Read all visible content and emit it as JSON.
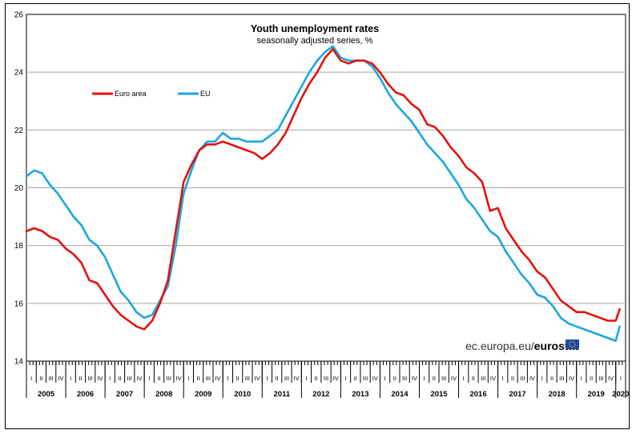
{
  "chart_data": {
    "type": "line",
    "title": "Youth unemployment rates",
    "subtitle": "seasonally adjusted series, %",
    "ylim": [
      14,
      26
    ],
    "yticks": [
      14,
      16,
      18,
      20,
      22,
      24,
      26
    ],
    "years": [
      "2005",
      "2006",
      "2007",
      "2008",
      "2009",
      "2010",
      "2011",
      "2012",
      "2013",
      "2014",
      "2015",
      "2016",
      "2017",
      "2018",
      "2019",
      "2020"
    ],
    "quarters": [
      "I",
      "II",
      "III",
      "IV"
    ],
    "legend": [
      "Euro area",
      "EU"
    ],
    "colors": {
      "Euro area": "#e3120b",
      "EU": "#1aa7e0"
    },
    "x_start": 2005.0,
    "x_end": 2020.25,
    "series": [
      {
        "name": "Euro area",
        "points": [
          [
            2005.0,
            18.5
          ],
          [
            2005.2,
            18.6
          ],
          [
            2005.4,
            18.5
          ],
          [
            2005.6,
            18.3
          ],
          [
            2005.8,
            18.2
          ],
          [
            2006.0,
            17.9
          ],
          [
            2006.2,
            17.7
          ],
          [
            2006.4,
            17.4
          ],
          [
            2006.6,
            16.8
          ],
          [
            2006.8,
            16.7
          ],
          [
            2007.0,
            16.3
          ],
          [
            2007.2,
            15.9
          ],
          [
            2007.4,
            15.6
          ],
          [
            2007.6,
            15.4
          ],
          [
            2007.8,
            15.2
          ],
          [
            2008.0,
            15.1
          ],
          [
            2008.2,
            15.4
          ],
          [
            2008.4,
            16.0
          ],
          [
            2008.6,
            16.8
          ],
          [
            2008.8,
            18.5
          ],
          [
            2009.0,
            20.2
          ],
          [
            2009.2,
            20.8
          ],
          [
            2009.4,
            21.3
          ],
          [
            2009.6,
            21.5
          ],
          [
            2009.8,
            21.5
          ],
          [
            2010.0,
            21.6
          ],
          [
            2010.2,
            21.5
          ],
          [
            2010.4,
            21.4
          ],
          [
            2010.6,
            21.3
          ],
          [
            2010.8,
            21.2
          ],
          [
            2011.0,
            21.0
          ],
          [
            2011.2,
            21.2
          ],
          [
            2011.4,
            21.5
          ],
          [
            2011.6,
            21.9
          ],
          [
            2011.8,
            22.5
          ],
          [
            2012.0,
            23.1
          ],
          [
            2012.2,
            23.6
          ],
          [
            2012.4,
            24.0
          ],
          [
            2012.6,
            24.5
          ],
          [
            2012.8,
            24.8
          ],
          [
            2013.0,
            24.4
          ],
          [
            2013.2,
            24.3
          ],
          [
            2013.4,
            24.4
          ],
          [
            2013.6,
            24.4
          ],
          [
            2013.8,
            24.3
          ],
          [
            2014.0,
            24.0
          ],
          [
            2014.2,
            23.6
          ],
          [
            2014.4,
            23.3
          ],
          [
            2014.6,
            23.2
          ],
          [
            2014.8,
            22.9
          ],
          [
            2015.0,
            22.7
          ],
          [
            2015.2,
            22.2
          ],
          [
            2015.4,
            22.1
          ],
          [
            2015.6,
            21.8
          ],
          [
            2015.8,
            21.4
          ],
          [
            2016.0,
            21.1
          ],
          [
            2016.2,
            20.7
          ],
          [
            2016.4,
            20.5
          ],
          [
            2016.6,
            20.2
          ],
          [
            2016.8,
            19.2
          ],
          [
            2017.0,
            19.3
          ],
          [
            2017.2,
            18.6
          ],
          [
            2017.4,
            18.2
          ],
          [
            2017.6,
            17.8
          ],
          [
            2017.8,
            17.5
          ],
          [
            2018.0,
            17.1
          ],
          [
            2018.2,
            16.9
          ],
          [
            2018.4,
            16.5
          ],
          [
            2018.6,
            16.1
          ],
          [
            2018.8,
            15.9
          ],
          [
            2019.0,
            15.7
          ],
          [
            2019.2,
            15.7
          ],
          [
            2019.4,
            15.6
          ],
          [
            2019.6,
            15.5
          ],
          [
            2019.8,
            15.4
          ],
          [
            2020.0,
            15.4
          ],
          [
            2020.1,
            15.8
          ]
        ]
      },
      {
        "name": "EU",
        "points": [
          [
            2005.0,
            20.4
          ],
          [
            2005.2,
            20.6
          ],
          [
            2005.4,
            20.5
          ],
          [
            2005.6,
            20.1
          ],
          [
            2005.8,
            19.8
          ],
          [
            2006.0,
            19.4
          ],
          [
            2006.2,
            19.0
          ],
          [
            2006.4,
            18.7
          ],
          [
            2006.6,
            18.2
          ],
          [
            2006.8,
            18.0
          ],
          [
            2007.0,
            17.6
          ],
          [
            2007.2,
            17.0
          ],
          [
            2007.4,
            16.4
          ],
          [
            2007.6,
            16.1
          ],
          [
            2007.8,
            15.7
          ],
          [
            2008.0,
            15.5
          ],
          [
            2008.2,
            15.6
          ],
          [
            2008.4,
            16.1
          ],
          [
            2008.6,
            16.6
          ],
          [
            2008.8,
            18.0
          ],
          [
            2009.0,
            19.8
          ],
          [
            2009.2,
            20.6
          ],
          [
            2009.4,
            21.3
          ],
          [
            2009.6,
            21.6
          ],
          [
            2009.8,
            21.6
          ],
          [
            2010.0,
            21.9
          ],
          [
            2010.2,
            21.7
          ],
          [
            2010.4,
            21.7
          ],
          [
            2010.6,
            21.6
          ],
          [
            2010.8,
            21.6
          ],
          [
            2011.0,
            21.6
          ],
          [
            2011.2,
            21.8
          ],
          [
            2011.4,
            22.0
          ],
          [
            2011.6,
            22.5
          ],
          [
            2011.8,
            23.0
          ],
          [
            2012.0,
            23.5
          ],
          [
            2012.2,
            24.0
          ],
          [
            2012.4,
            24.4
          ],
          [
            2012.6,
            24.7
          ],
          [
            2012.8,
            24.9
          ],
          [
            2013.0,
            24.5
          ],
          [
            2013.2,
            24.4
          ],
          [
            2013.4,
            24.4
          ],
          [
            2013.6,
            24.4
          ],
          [
            2013.8,
            24.2
          ],
          [
            2014.0,
            23.8
          ],
          [
            2014.2,
            23.3
          ],
          [
            2014.4,
            22.9
          ],
          [
            2014.6,
            22.6
          ],
          [
            2014.8,
            22.3
          ],
          [
            2015.0,
            21.9
          ],
          [
            2015.2,
            21.5
          ],
          [
            2015.4,
            21.2
          ],
          [
            2015.6,
            20.9
          ],
          [
            2015.8,
            20.5
          ],
          [
            2016.0,
            20.1
          ],
          [
            2016.2,
            19.6
          ],
          [
            2016.4,
            19.3
          ],
          [
            2016.6,
            18.9
          ],
          [
            2016.8,
            18.5
          ],
          [
            2017.0,
            18.3
          ],
          [
            2017.2,
            17.8
          ],
          [
            2017.4,
            17.4
          ],
          [
            2017.6,
            17.0
          ],
          [
            2017.8,
            16.7
          ],
          [
            2018.0,
            16.3
          ],
          [
            2018.2,
            16.2
          ],
          [
            2018.4,
            15.9
          ],
          [
            2018.6,
            15.5
          ],
          [
            2018.8,
            15.3
          ],
          [
            2019.0,
            15.2
          ],
          [
            2019.2,
            15.1
          ],
          [
            2019.4,
            15.0
          ],
          [
            2019.6,
            14.9
          ],
          [
            2019.8,
            14.8
          ],
          [
            2020.0,
            14.7
          ],
          [
            2020.1,
            15.2
          ]
        ]
      }
    ]
  },
  "watermark": {
    "site": "ec.europa.eu/",
    "brand": "eurostat"
  }
}
